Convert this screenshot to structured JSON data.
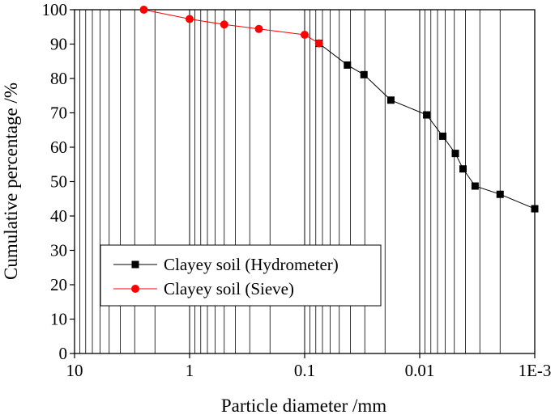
{
  "chart_data": {
    "type": "scatter",
    "title": "",
    "xlabel": "Particle diameter /mm",
    "ylabel": "Cumulative percentage /%",
    "x_scale": "log",
    "x_reversed": true,
    "xlim": [
      10,
      0.001
    ],
    "ylim": [
      0,
      100
    ],
    "grid": "vertical",
    "legend_position": "lower-left",
    "x_ticks": [
      {
        "value": 10,
        "label": "10"
      },
      {
        "value": 1,
        "label": "1"
      },
      {
        "value": 0.1,
        "label": "0.1"
      },
      {
        "value": 0.01,
        "label": "0.01"
      },
      {
        "value": 0.001,
        "label": "1E-3"
      }
    ],
    "y_ticks": [
      {
        "value": 0,
        "label": "0"
      },
      {
        "value": 10,
        "label": "10"
      },
      {
        "value": 20,
        "label": "20"
      },
      {
        "value": 30,
        "label": "30"
      },
      {
        "value": 40,
        "label": "40"
      },
      {
        "value": 50,
        "label": "50"
      },
      {
        "value": 60,
        "label": "60"
      },
      {
        "value": 70,
        "label": "70"
      },
      {
        "value": 80,
        "label": "80"
      },
      {
        "value": 90,
        "label": "90"
      },
      {
        "value": 100,
        "label": "100"
      }
    ],
    "series": [
      {
        "name": "Clayey soil (Hydrometer)",
        "color": "#000000",
        "marker": "square",
        "points": [
          {
            "x": 0.075,
            "y": 90.2
          },
          {
            "x": 0.0425,
            "y": 83.9
          },
          {
            "x": 0.0305,
            "y": 81.1
          },
          {
            "x": 0.0178,
            "y": 73.7
          },
          {
            "x": 0.0087,
            "y": 69.4
          },
          {
            "x": 0.0063,
            "y": 63.2
          },
          {
            "x": 0.0049,
            "y": 58.2
          },
          {
            "x": 0.0042,
            "y": 53.7
          },
          {
            "x": 0.0033,
            "y": 48.7
          },
          {
            "x": 0.002,
            "y": 46.3
          },
          {
            "x": 0.001,
            "y": 42.1
          }
        ]
      },
      {
        "name": "Clayey soil (Sieve)",
        "color": "#ff0000",
        "marker": "circle",
        "points": [
          {
            "x": 2.5,
            "y": 100
          },
          {
            "x": 1.0,
            "y": 97.3
          },
          {
            "x": 0.5,
            "y": 95.7
          },
          {
            "x": 0.25,
            "y": 94.4
          },
          {
            "x": 0.1,
            "y": 92.7
          },
          {
            "x": 0.075,
            "y": 90.2
          }
        ]
      }
    ]
  }
}
